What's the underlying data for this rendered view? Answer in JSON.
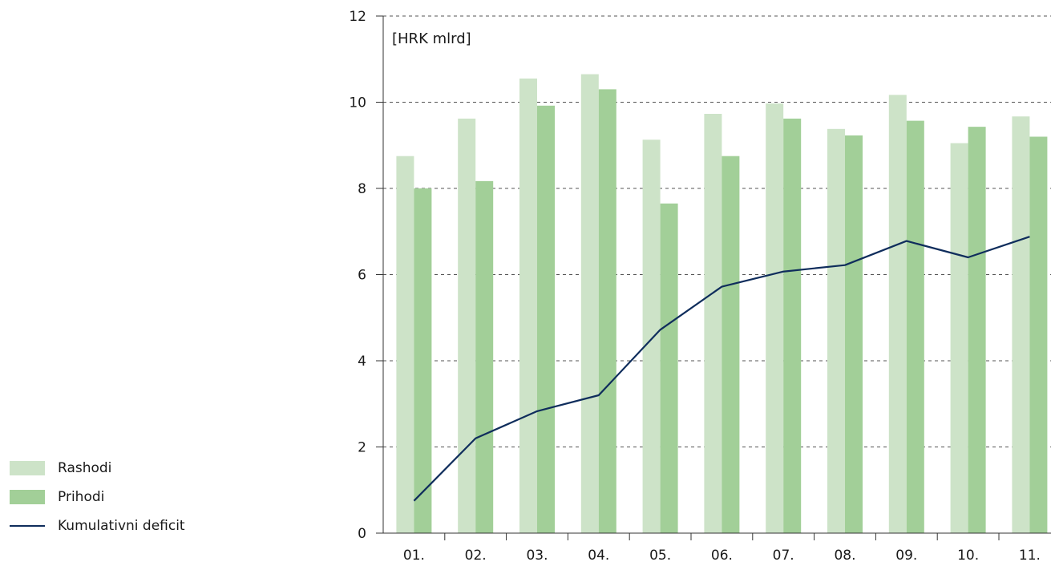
{
  "chart_data": {
    "type": "bar",
    "unit_label": "[HRK mlrd]",
    "categories": [
      "01.",
      "02.",
      "03.",
      "04.",
      "05.",
      "06.",
      "07.",
      "08.",
      "09.",
      "10.",
      "11."
    ],
    "ylim": [
      0,
      12
    ],
    "yticks": [
      "0",
      "2",
      "4",
      "6",
      "8",
      "10",
      "12"
    ],
    "grid": true,
    "legend_position": "bottom-left",
    "series": [
      {
        "name": "Rashodi",
        "kind": "bar",
        "color": "#cde3c8",
        "values": [
          8.75,
          9.62,
          10.55,
          10.65,
          9.13,
          9.73,
          9.97,
          9.38,
          10.17,
          9.05,
          9.67
        ]
      },
      {
        "name": "Prihodi",
        "kind": "bar",
        "color": "#a2cf98",
        "values": [
          8.0,
          8.17,
          9.92,
          10.3,
          7.65,
          8.75,
          9.62,
          9.23,
          9.57,
          9.43,
          9.2
        ]
      },
      {
        "name": "Kumulativni deficit",
        "kind": "line",
        "color": "#0f2d5c",
        "values": [
          0.75,
          2.2,
          2.83,
          3.2,
          4.72,
          5.72,
          6.07,
          6.22,
          6.78,
          6.4,
          6.88
        ]
      }
    ]
  }
}
